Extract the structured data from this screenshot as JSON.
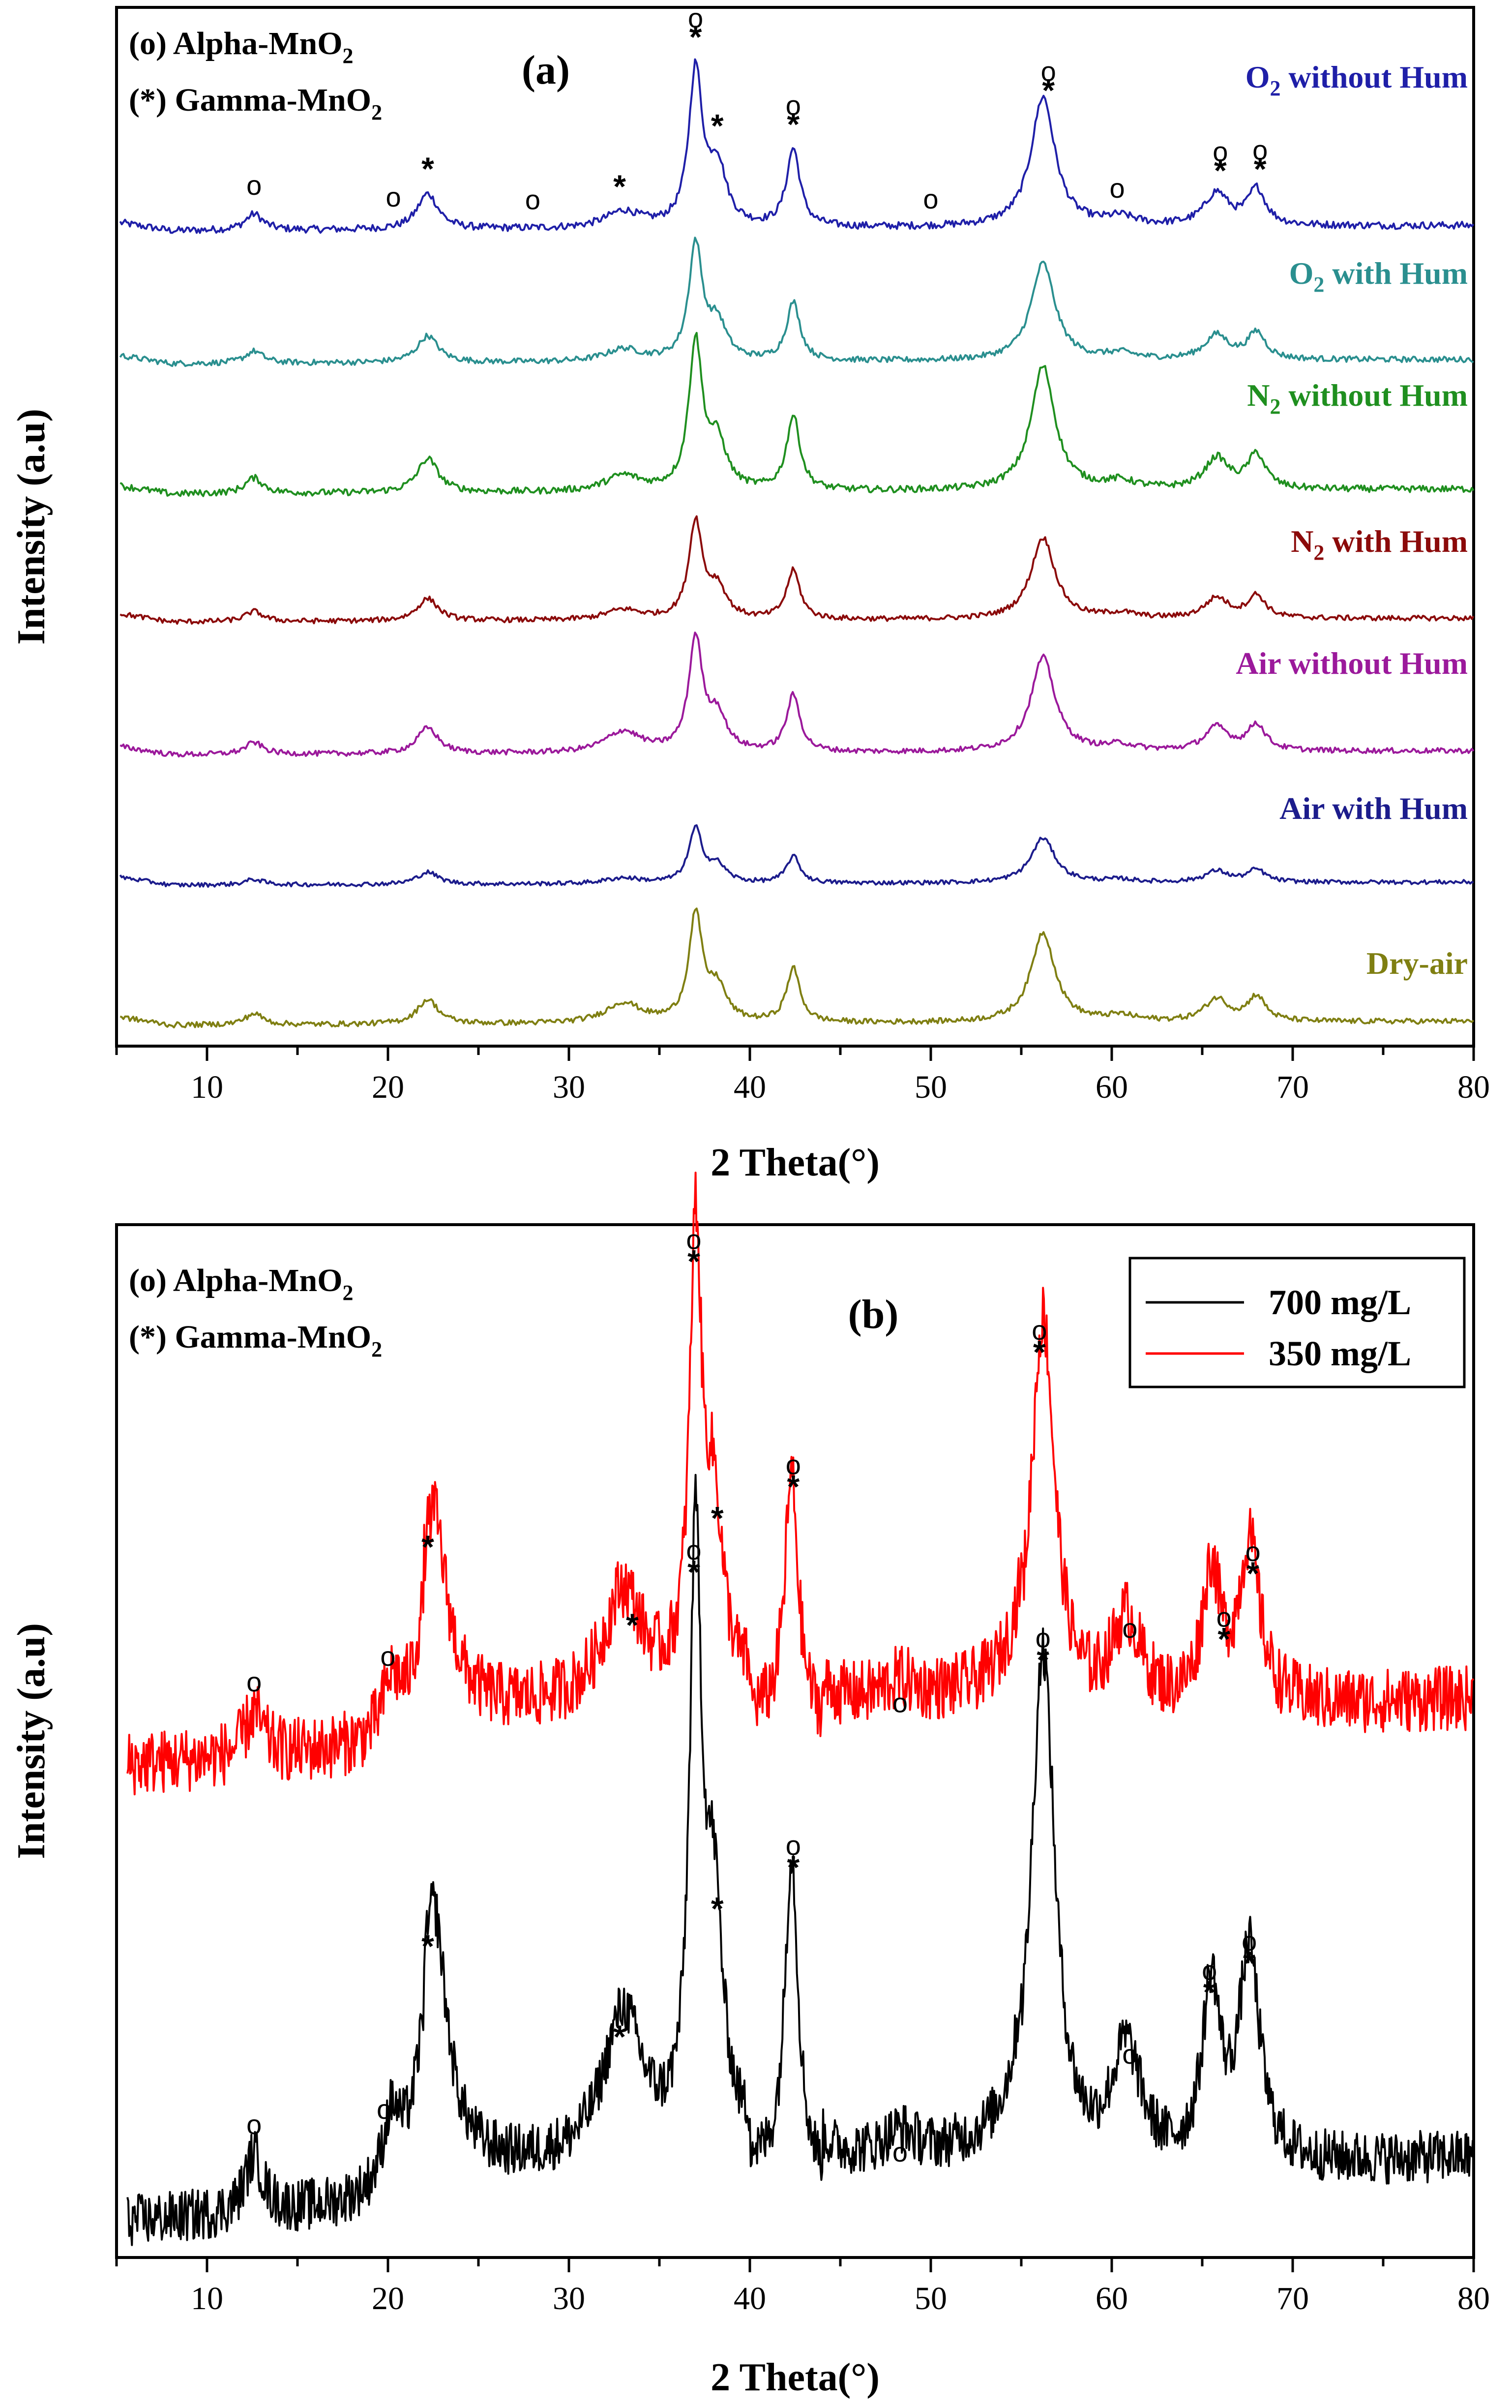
{
  "chart_data": [
    {
      "type": "line",
      "panel": "(a)",
      "xlabel": "2 Theta(°)",
      "ylabel": "Intensity (a.u)",
      "xlim": [
        5,
        80
      ],
      "xticks": [
        10,
        20,
        30,
        40,
        50,
        60,
        70,
        80
      ],
      "phase_legend": {
        "alpha": "(o) Alpha-MnO",
        "gamma": "(*) Gamma-MnO",
        "subscript": "2"
      },
      "series": [
        {
          "name": "O2 without Hum",
          "label_main": "O",
          "label_sub": "2",
          "label_rest": " without Hum",
          "color": "#1f1fa8",
          "offset": 6.0,
          "scale": 1.0,
          "style": "B"
        },
        {
          "name": "O2 with Hum",
          "label_main": "O",
          "label_sub": "2",
          "label_rest": " with Hum",
          "color": "#2a8f8f",
          "offset": 5.0,
          "scale": 0.95,
          "style": "A"
        },
        {
          "name": "N2 without Hum",
          "label_main": "N",
          "label_sub": "2",
          "label_rest": " without Hum",
          "color": "#1f8f1f",
          "offset": 4.0,
          "scale": 1.05,
          "style": "A"
        },
        {
          "name": "N2 with Hum",
          "label_main": "N",
          "label_sub": "2",
          "label_rest": " with Hum",
          "color": "#8b0a0a",
          "offset": 3.0,
          "scale": 0.9,
          "style": "A"
        },
        {
          "name": "Air without Hum",
          "label_main": "Air without Hum",
          "label_sub": "",
          "label_rest": "",
          "color": "#9b199b",
          "offset": 2.0,
          "scale": 1.0,
          "style": "G"
        },
        {
          "name": "Air with Hum",
          "label_main": "Air with Hum",
          "label_sub": "",
          "label_rest": "",
          "color": "#1c1c8c",
          "offset": 1.0,
          "scale": 0.6,
          "style": "A"
        },
        {
          "name": "Dry-air",
          "label_main": "Dry-air",
          "label_sub": "",
          "label_rest": "",
          "color": "#7f7f12",
          "offset": 0.0,
          "scale": 0.95,
          "style": "G"
        }
      ],
      "peaks": [
        {
          "x": 12.6,
          "h": 0.1,
          "w": 0.6
        },
        {
          "x": 22.2,
          "h": 0.22,
          "w": 0.7
        },
        {
          "x": 33.0,
          "h": 0.1,
          "w": 1.2
        },
        {
          "x": 37.0,
          "h": 0.95,
          "w": 0.45
        },
        {
          "x": 38.2,
          "h": 0.3,
          "w": 0.6
        },
        {
          "x": 42.4,
          "h": 0.48,
          "w": 0.45
        },
        {
          "x": 56.2,
          "h": 0.8,
          "w": 0.8
        },
        {
          "x": 60.5,
          "h": 0.05,
          "w": 1.0
        },
        {
          "x": 65.8,
          "h": 0.2,
          "w": 0.8
        },
        {
          "x": 68.0,
          "h": 0.22,
          "w": 0.6
        }
      ],
      "markers": [
        {
          "x": 12.6,
          "symbol": "o"
        },
        {
          "x": 20.3,
          "symbol": "o"
        },
        {
          "x": 22.2,
          "symbol": "*"
        },
        {
          "x": 28.0,
          "symbol": "o"
        },
        {
          "x": 32.8,
          "symbol": "*"
        },
        {
          "x": 37.0,
          "symbol": "*o"
        },
        {
          "x": 38.2,
          "symbol": "*"
        },
        {
          "x": 42.4,
          "symbol": "*o"
        },
        {
          "x": 50.0,
          "symbol": "o"
        },
        {
          "x": 56.5,
          "symbol": "*o"
        },
        {
          "x": 60.3,
          "symbol": "o"
        },
        {
          "x": 66.0,
          "symbol": "*o"
        },
        {
          "x": 68.2,
          "symbol": "*o"
        }
      ]
    },
    {
      "type": "line",
      "panel": "(b)",
      "xlabel": "2 Theta(°)",
      "ylabel": "Intensity (a.u)",
      "xlim": [
        5,
        80
      ],
      "xticks": [
        10,
        20,
        30,
        40,
        50,
        60,
        70,
        80
      ],
      "phase_legend": {
        "alpha": "(o) Alpha-MnO",
        "gamma": "(*) Gamma-MnO",
        "subscript": "2"
      },
      "series": [
        {
          "name": "700 mg/L",
          "color": "#000000",
          "offset": 0.0,
          "scale": 1.0
        },
        {
          "name": "350 mg/L",
          "color": "#ff0000",
          "offset": 0.55,
          "scale": 0.75
        }
      ],
      "peaks": [
        {
          "x": 12.6,
          "h": 0.1,
          "w": 0.6
        },
        {
          "x": 20.2,
          "h": 0.12,
          "w": 0.6
        },
        {
          "x": 22.5,
          "h": 0.45,
          "w": 0.9
        },
        {
          "x": 33.0,
          "h": 0.25,
          "w": 1.3
        },
        {
          "x": 37.0,
          "h": 1.0,
          "w": 0.4
        },
        {
          "x": 38.0,
          "h": 0.4,
          "w": 0.6
        },
        {
          "x": 42.3,
          "h": 0.56,
          "w": 0.45
        },
        {
          "x": 48.3,
          "h": 0.04,
          "w": 1.0
        },
        {
          "x": 56.2,
          "h": 0.9,
          "w": 0.8
        },
        {
          "x": 60.8,
          "h": 0.2,
          "w": 1.0
        },
        {
          "x": 65.5,
          "h": 0.3,
          "w": 0.6
        },
        {
          "x": 67.6,
          "h": 0.36,
          "w": 0.7
        }
      ],
      "markers_red": [
        {
          "x": 12.6,
          "symbol": "o"
        },
        {
          "x": 20.0,
          "symbol": "o"
        },
        {
          "x": 22.2,
          "symbol": "*"
        },
        {
          "x": 33.5,
          "symbol": "*"
        },
        {
          "x": 36.9,
          "symbol": "*o"
        },
        {
          "x": 38.2,
          "symbol": "*"
        },
        {
          "x": 42.4,
          "symbol": "*o"
        },
        {
          "x": 48.3,
          "symbol": "o"
        },
        {
          "x": 56.0,
          "symbol": "*o"
        },
        {
          "x": 61.0,
          "symbol": "o"
        },
        {
          "x": 66.2,
          "symbol": "*o"
        },
        {
          "x": 67.8,
          "symbol": "*o"
        }
      ],
      "markers_black": [
        {
          "x": 12.6,
          "symbol": "o"
        },
        {
          "x": 19.8,
          "symbol": "o"
        },
        {
          "x": 22.2,
          "symbol": "*"
        },
        {
          "x": 32.8,
          "symbol": "*"
        },
        {
          "x": 36.9,
          "symbol": "*o"
        },
        {
          "x": 38.2,
          "symbol": "*"
        },
        {
          "x": 42.4,
          "symbol": "*o"
        },
        {
          "x": 48.3,
          "symbol": "o"
        },
        {
          "x": 56.2,
          "symbol": "*o"
        },
        {
          "x": 61.0,
          "symbol": "o"
        },
        {
          "x": 65.4,
          "symbol": "*o"
        },
        {
          "x": 67.6,
          "symbol": "*o"
        }
      ]
    }
  ]
}
